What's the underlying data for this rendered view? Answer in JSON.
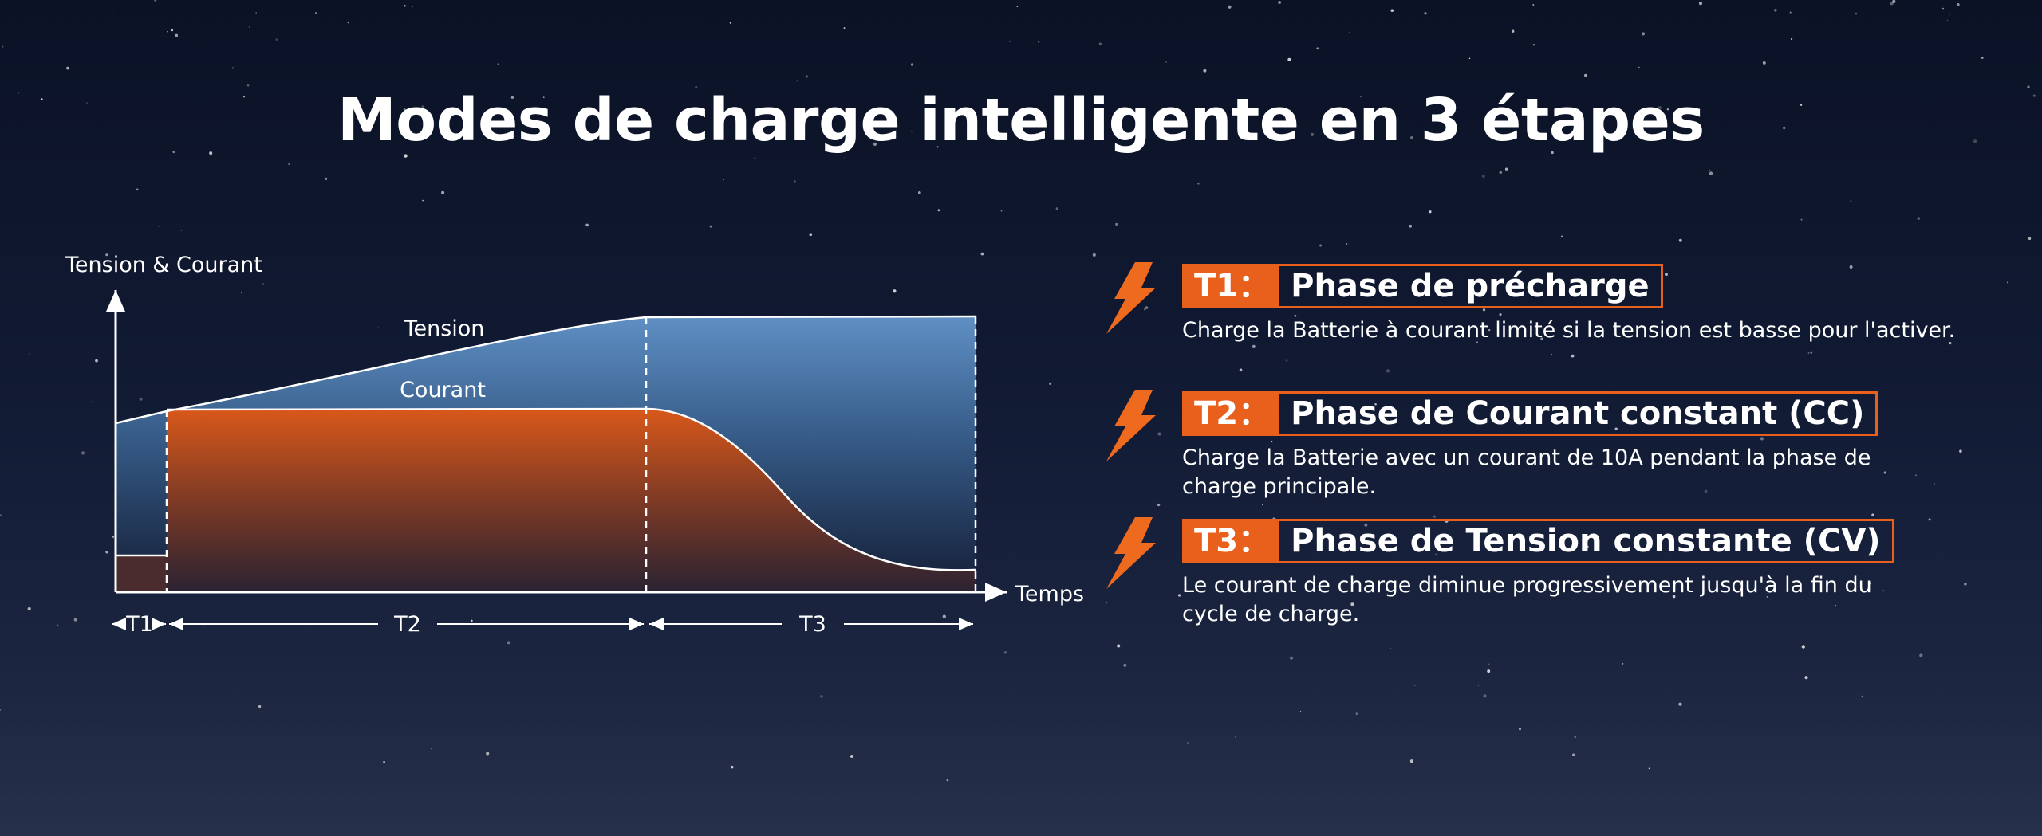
{
  "title": "Modes de charge intelligente en 3 étapes",
  "chart": {
    "y_axis_label": "Tension & Courant",
    "x_axis_label": "Temps",
    "curves": [
      "Tension",
      "Courant"
    ],
    "phases": [
      "T1",
      "T2",
      "T3"
    ]
  },
  "steps": [
    {
      "label": "T1：",
      "heading": "Phase de précharge",
      "description_lines": [
        "Charge la Batterie à courant limité si la tension est basse pour l'activer."
      ]
    },
    {
      "label": "T2：",
      "heading": "Phase de Courant constant (CC)",
      "description_lines": [
        "Charge la Batterie avec un courant de 10A pendant la phase de",
        "charge principale."
      ]
    },
    {
      "label": "T3：",
      "heading": "Phase de Tension constante (CV)",
      "description_lines": [
        "Le courant de charge diminue progressivement jusqu'à la fin du",
        "cycle de charge."
      ]
    }
  ]
}
